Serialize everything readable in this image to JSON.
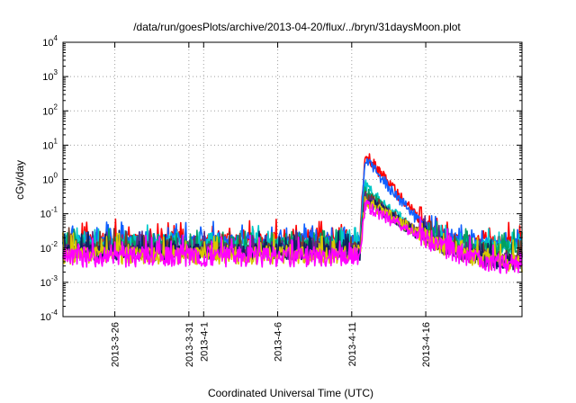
{
  "chart_data": {
    "type": "line",
    "title": "/data/run/goesPlots/archive/2013-04-20/flux/../bryn/31daysMoon.plot",
    "xlabel": "Coordinated Universal Time (UTC)",
    "ylabel": "cGy/day",
    "y_scale": "log",
    "ylim": [
      0.0001,
      10000
    ],
    "y_ticks": [
      {
        "base": "10",
        "exp": "4",
        "value": 10000
      },
      {
        "base": "10",
        "exp": "3",
        "value": 1000
      },
      {
        "base": "10",
        "exp": "2",
        "value": 100
      },
      {
        "base": "10",
        "exp": "1",
        "value": 10
      },
      {
        "base": "10",
        "exp": "0",
        "value": 1
      },
      {
        "base": "10",
        "exp": "-1",
        "value": 0.1
      },
      {
        "base": "10",
        "exp": "-2",
        "value": 0.01
      },
      {
        "base": "10",
        "exp": "-3",
        "value": 0.001
      },
      {
        "base": "10",
        "exp": "-4",
        "value": 0.0001
      }
    ],
    "x_unit": "day offset from 2013-03-20 00:00 UTC",
    "xlim": [
      2.5,
      33.5
    ],
    "x_ticks": [
      {
        "label": "2013-3-26",
        "value": 6
      },
      {
        "label": "2013-3-31",
        "value": 11
      },
      {
        "label": "2013-4-1",
        "value": 12
      },
      {
        "label": "2013-4-6",
        "value": 17
      },
      {
        "label": "2013-4-11",
        "value": 22
      },
      {
        "label": "2013-4-16",
        "value": 27
      }
    ],
    "event_start": 22.55,
    "event_peak": 22.9,
    "series": [
      {
        "name": "red",
        "color": "#ff0000",
        "quiet": 0.018,
        "noise": 0.55,
        "peak": 5.5,
        "decay": 1.25,
        "late": 0.016
      },
      {
        "name": "blue",
        "color": "#1060ff",
        "quiet": 0.016,
        "noise": 0.55,
        "peak": 4.0,
        "decay": 1.2,
        "late": 0.014
      },
      {
        "name": "cyan",
        "color": "#00c8c8",
        "quiet": 0.013,
        "noise": 0.6,
        "peak": 0.7,
        "decay": 1.0,
        "late": 0.011
      },
      {
        "name": "green",
        "color": "#00a060",
        "quiet": 0.011,
        "noise": 0.65,
        "peak": 0.45,
        "decay": 0.9,
        "late": 0.009
      },
      {
        "name": "brown",
        "color": "#7a3a2a",
        "quiet": 0.009,
        "noise": 0.75,
        "peak": 0.35,
        "decay": 0.75,
        "late": 0.0045
      },
      {
        "name": "purple",
        "color": "#5a2a8a",
        "quiet": 0.008,
        "noise": 0.8,
        "peak": 0.3,
        "decay": 0.7,
        "late": 0.004
      },
      {
        "name": "navy",
        "color": "#102060",
        "quiet": 0.0075,
        "noise": 0.8,
        "peak": 0.28,
        "decay": 0.7,
        "late": 0.0038
      },
      {
        "name": "yellow",
        "color": "#d8c800",
        "quiet": 0.006,
        "noise": 0.85,
        "peak": 0.25,
        "decay": 0.65,
        "late": 0.0032
      },
      {
        "name": "magenta",
        "color": "#ff00ff",
        "quiet": 0.0055,
        "noise": 1.0,
        "peak": 0.18,
        "decay": 0.6,
        "late": 0.0028
      }
    ]
  }
}
